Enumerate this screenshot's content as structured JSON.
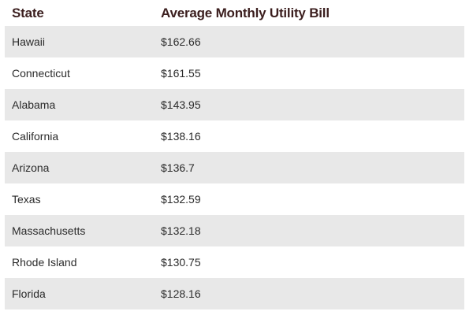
{
  "table": {
    "headers": {
      "state": "State",
      "bill": "Average Monthly Utility Bill"
    },
    "rows": [
      {
        "state": "Hawaii",
        "bill": "$162.66"
      },
      {
        "state": "Connecticut",
        "bill": "$161.55"
      },
      {
        "state": "Alabama",
        "bill": "$143.95"
      },
      {
        "state": "California",
        "bill": "$138.16"
      },
      {
        "state": "Arizona",
        "bill": "$136.7"
      },
      {
        "state": "Texas",
        "bill": "$132.59"
      },
      {
        "state": "Massachusetts",
        "bill": "$132.18"
      },
      {
        "state": "Rhode Island",
        "bill": "$130.75"
      },
      {
        "state": "Florida",
        "bill": "$128.16"
      }
    ]
  },
  "colors": {
    "header_text": "#3b1e1e",
    "stripe": "#e8e8e8",
    "row_text": "#2b2b2b"
  }
}
